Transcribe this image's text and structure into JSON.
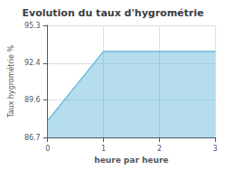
{
  "chart_data": {
    "type": "area",
    "title": "Evolution du taux d'hygrométrie",
    "xlabel": "heure par heure",
    "ylabel": "Taux hygrométrie %",
    "x": [
      0,
      1,
      3
    ],
    "values": [
      88.0,
      93.3,
      93.3
    ],
    "color": "#5ab4d6",
    "xlim": [
      0,
      3
    ],
    "xticks": [
      0,
      1,
      2,
      3
    ],
    "ylim": [
      86.7,
      95.3
    ],
    "yticks": [
      86.7,
      89.6,
      92.4,
      95.3
    ],
    "grid": true
  }
}
